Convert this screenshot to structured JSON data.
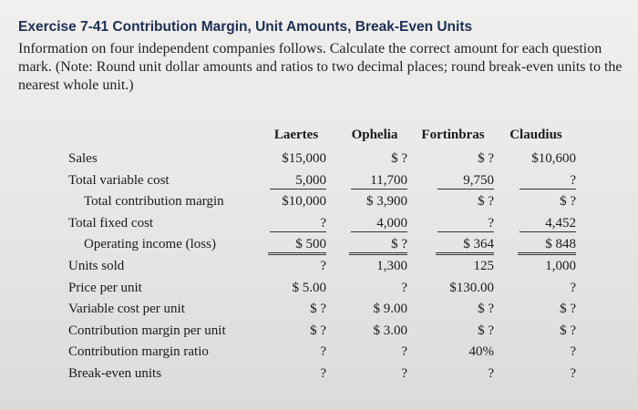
{
  "header": {
    "title": "Exercise 7-41 Contribution Margin, Unit Amounts, Break-Even Units"
  },
  "intro": "Information on four independent companies follows. Calculate the correct amount for each question mark. (Note: Round unit dollar amounts and ratios to two decimal places; round break-even units to the nearest whole unit.)",
  "table": {
    "columns": [
      "Laertes",
      "Ophelia",
      "Fortinbras",
      "Claudius"
    ],
    "rows": [
      {
        "label": "Sales",
        "cells": [
          "$15,000",
          "$ ?",
          "$ ?",
          "$10,600"
        ]
      },
      {
        "label": "Total variable cost",
        "cells": [
          "5,000",
          "11,700",
          "9,750",
          "?"
        ]
      },
      {
        "label": "Total contribution margin",
        "cells": [
          "$10,000",
          "$ 3,900",
          "$ ?",
          "$ ?"
        ]
      },
      {
        "label": "Total fixed cost",
        "cells": [
          "?",
          "4,000",
          "?",
          "4,452"
        ]
      },
      {
        "label": "Operating income (loss)",
        "cells": [
          "$ 500",
          "$ ?",
          "$ 364",
          "$ 848"
        ]
      },
      {
        "label": "Units sold",
        "cells": [
          "?",
          "1,300",
          "125",
          "1,000"
        ]
      },
      {
        "label": "Price per unit",
        "cells": [
          "$ 5.00",
          "?",
          "$130.00",
          "?"
        ]
      },
      {
        "label": "Variable cost per unit",
        "cells": [
          "$ ?",
          "$ 9.00",
          "$ ?",
          "$ ?"
        ]
      },
      {
        "label": "Contribution margin per unit",
        "cells": [
          "$ ?",
          "$ 3.00",
          "$ ?",
          "$ ?"
        ]
      },
      {
        "label": "Contribution margin ratio",
        "cells": [
          "?",
          "?",
          "40%",
          "?"
        ]
      },
      {
        "label": "Break-even units",
        "cells": [
          "?",
          "?",
          "?",
          "?"
        ]
      }
    ]
  }
}
